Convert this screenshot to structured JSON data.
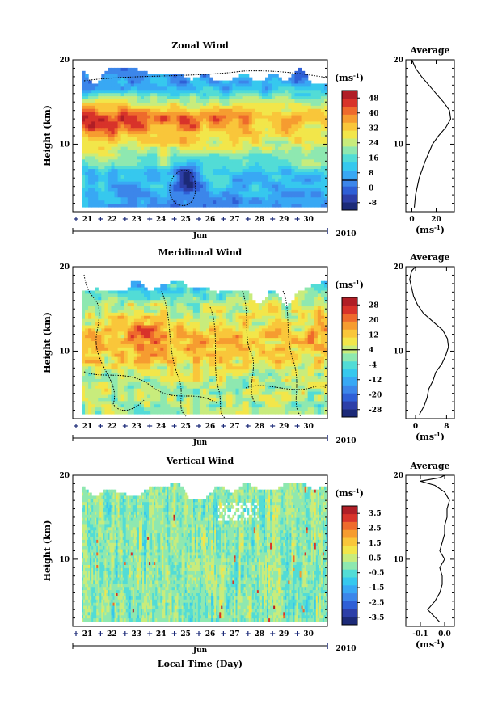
{
  "chart_data": [
    {
      "type": "heatmap",
      "title": "Zonal Wind",
      "ylabel": "Height (km)",
      "y_ticks": [
        "20",
        "10"
      ],
      "ylim": [
        2,
        20
      ],
      "x_ticks": [
        "21",
        "22",
        "23",
        "24",
        "25",
        "26",
        "27",
        "28",
        "29",
        "30"
      ],
      "x_month": "Jun",
      "year": "2010",
      "colorbar": {
        "unit": "(ms",
        "unit_sup": "-1",
        "unit_close": ")",
        "labels": [
          "48",
          "40",
          "32",
          "24",
          "16",
          "8",
          "0",
          "-8"
        ],
        "range": [
          -12,
          52
        ],
        "colors": [
          "#1c2a78",
          "#2d3fa8",
          "#2f5fd6",
          "#3c86ea",
          "#38a8f4",
          "#36c8ee",
          "#52dcd6",
          "#8ee8b0",
          "#c8ec7c",
          "#f2e64a",
          "#f9c63a",
          "#f69c30",
          "#ee6a2c",
          "#d8332a",
          "#b01e26"
        ]
      },
      "average": {
        "title": "Average",
        "y_ticks": [
          "20",
          "10"
        ],
        "x_ticks": [
          "0",
          "20"
        ],
        "xlim": [
          -5,
          35
        ],
        "xlabel": "(ms",
        "xlabel_sup": "-1",
        "xlabel_close": ")",
        "profile": [
          [
            2.5,
            2
          ],
          [
            4,
            3
          ],
          [
            6,
            6
          ],
          [
            8,
            11
          ],
          [
            10,
            17
          ],
          [
            11,
            22
          ],
          [
            12,
            28
          ],
          [
            13,
            32
          ],
          [
            14,
            31
          ],
          [
            15,
            26
          ],
          [
            16,
            20
          ],
          [
            17,
            14
          ],
          [
            18,
            8
          ],
          [
            19,
            3
          ],
          [
            20,
            0
          ]
        ]
      }
    },
    {
      "type": "heatmap",
      "title": "Meridional Wind",
      "ylabel": "Height (km)",
      "y_ticks": [
        "20",
        "10"
      ],
      "ylim": [
        2,
        20
      ],
      "x_ticks": [
        "21",
        "22",
        "23",
        "24",
        "25",
        "26",
        "27",
        "28",
        "29",
        "30"
      ],
      "x_month": "Jun",
      "year": "2010",
      "colorbar": {
        "unit": "(ms",
        "unit_sup": "-1",
        "unit_close": ")",
        "labels": [
          "28",
          "20",
          "12",
          "4",
          "-4",
          "-12",
          "-20",
          "-28"
        ],
        "range": [
          -32,
          32
        ],
        "colors": [
          "#1c2a78",
          "#2d3fa8",
          "#2f5fd6",
          "#3c86ea",
          "#38a8f4",
          "#36c8ee",
          "#52dcd6",
          "#8ee8b0",
          "#c8ec7c",
          "#f2e64a",
          "#f9c63a",
          "#f69c30",
          "#ee6a2c",
          "#d8332a",
          "#b01e26"
        ]
      },
      "average": {
        "title": "Average",
        "y_ticks": [
          "20",
          "10"
        ],
        "x_ticks": [
          "0",
          "8"
        ],
        "xlim": [
          -2.5,
          10
        ],
        "xlabel": "(ms",
        "xlabel_sup": "-1",
        "xlabel_close": ")",
        "profile": [
          [
            2.5,
            1
          ],
          [
            3.5,
            2.2
          ],
          [
            4.5,
            3
          ],
          [
            5.5,
            3.4
          ],
          [
            6.5,
            4.5
          ],
          [
            7.5,
            5.2
          ],
          [
            8.5,
            6.8
          ],
          [
            9.5,
            7.8
          ],
          [
            10.5,
            8.5
          ],
          [
            11.5,
            8.2
          ],
          [
            12.5,
            7
          ],
          [
            13.5,
            4.5
          ],
          [
            14.5,
            2
          ],
          [
            15.5,
            0.5
          ],
          [
            16.5,
            -0.5
          ],
          [
            17.5,
            -1
          ],
          [
            18.5,
            -1.5
          ],
          [
            19.5,
            -1
          ],
          [
            20,
            0
          ]
        ]
      }
    },
    {
      "type": "heatmap",
      "title": "Vertical Wind",
      "ylabel": "Height (km)",
      "xlabel": "Local Time (Day)",
      "y_ticks": [
        "20",
        "10"
      ],
      "ylim": [
        2,
        20
      ],
      "x_ticks": [
        "21",
        "22",
        "23",
        "24",
        "25",
        "26",
        "27",
        "28",
        "29",
        "30"
      ],
      "x_month": "Jun",
      "year": "2010",
      "colorbar": {
        "unit": "(ms",
        "unit_sup": "-1",
        "unit_close": ")",
        "labels": [
          "3.5",
          "2.5",
          "1.5",
          "0.5",
          "-0.5",
          "-1.5",
          "-2.5",
          "-3.5"
        ],
        "range": [
          -4,
          4
        ],
        "colors": [
          "#1c2a78",
          "#2d3fa8",
          "#2f5fd6",
          "#3c86ea",
          "#38a8f4",
          "#36c8ee",
          "#52dcd6",
          "#8ee8b0",
          "#c8ec7c",
          "#f2e64a",
          "#f9c63a",
          "#f69c30",
          "#ee6a2c",
          "#d8332a",
          "#b01e26"
        ]
      },
      "average": {
        "title": "Average",
        "y_ticks": [
          "20",
          "10"
        ],
        "x_ticks": [
          "-0.1",
          "0.0"
        ],
        "xlim": [
          -0.16,
          0.04
        ],
        "xlabel": "(ms",
        "xlabel_sup": "-1",
        "xlabel_close": ")",
        "profile": [
          [
            2.5,
            -0.02
          ],
          [
            4,
            -0.07
          ],
          [
            5,
            -0.04
          ],
          [
            6,
            -0.02
          ],
          [
            7,
            -0.01
          ],
          [
            8,
            -0.01
          ],
          [
            9,
            -0.02
          ],
          [
            10,
            0.0
          ],
          [
            11,
            -0.02
          ],
          [
            12,
            -0.01
          ],
          [
            13,
            0.0
          ],
          [
            14,
            0.0
          ],
          [
            15,
            0.01
          ],
          [
            16,
            0.01
          ],
          [
            17,
            0.02
          ],
          [
            18,
            0.0
          ],
          [
            18.8,
            -0.04
          ],
          [
            19.3,
            -0.1
          ],
          [
            19.7,
            -0.02
          ],
          [
            20,
            0.0
          ]
        ]
      }
    }
  ]
}
